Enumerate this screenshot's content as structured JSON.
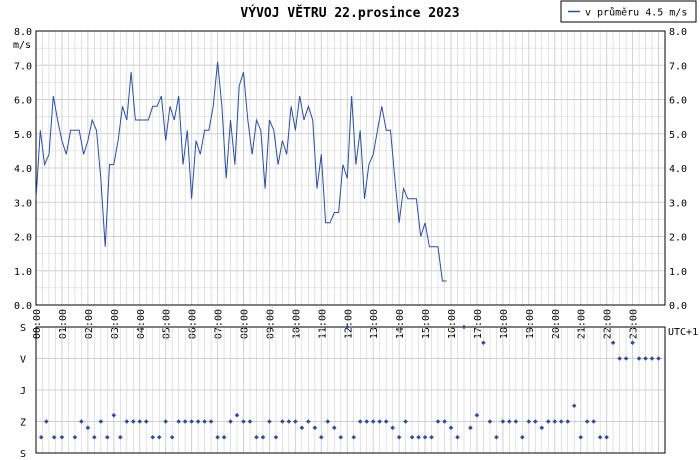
{
  "chart_data": [
    {
      "type": "line",
      "title": "VÝVOJ VĚTRU  22.prosince 2023",
      "ylabel": "m/s",
      "timezone_label": "UTC+1",
      "legend": {
        "label": "v průměru 4.5 m/s",
        "placement": "top-right"
      },
      "ylim": [
        0,
        8
      ],
      "yticks": [
        "0.0",
        "1.0",
        "2.0",
        "3.0",
        "4.0",
        "5.0",
        "6.0",
        "7.0",
        "8.0"
      ],
      "xlim_hours": [
        0,
        24.25
      ],
      "xticks": [
        "00:00",
        "01:00",
        "02:00",
        "03:00",
        "04:00",
        "05:00",
        "06:00",
        "07:00",
        "08:00",
        "09:00",
        "10:00",
        "11:00",
        "12:00",
        "13:00",
        "14:00",
        "15:00",
        "16:00",
        "17:00",
        "18:00",
        "19:00",
        "20:00",
        "21:00",
        "22:00",
        "23:00"
      ],
      "grid": true,
      "colors": {
        "line": "#2b4f9e",
        "grid": "#d0d0d0",
        "axis": "#000000"
      },
      "series": [
        {
          "interval_minutes": 10,
          "values": [
            3.1,
            5.1,
            4.1,
            4.4,
            6.1,
            5.4,
            4.8,
            4.4,
            5.1,
            5.1,
            5.1,
            4.4,
            4.8,
            5.4,
            5.1,
            3.7,
            1.7,
            4.1,
            4.1,
            4.8,
            5.8,
            5.4,
            6.8,
            5.4,
            5.4,
            5.4,
            5.4,
            5.8,
            5.8,
            6.1,
            4.8,
            5.8,
            5.4,
            6.1,
            4.1,
            5.1,
            3.1,
            4.8,
            4.4,
            5.1,
            5.1,
            5.8,
            7.1,
            5.8,
            3.7,
            5.4,
            4.1,
            6.4,
            6.8,
            5.4,
            4.4,
            5.4,
            5.1,
            3.4,
            5.4,
            5.1,
            4.1,
            4.8,
            4.4,
            5.8,
            5.1,
            6.1,
            5.4,
            5.8,
            5.4,
            3.4,
            4.4,
            2.4,
            2.4,
            2.7,
            2.7,
            4.1,
            3.7,
            6.1,
            4.1,
            5.1,
            3.1,
            4.1,
            4.4,
            5.1,
            5.8,
            5.1,
            5.1,
            3.7,
            2.4,
            3.4,
            3.1,
            3.1,
            3.1,
            2.0,
            2.4,
            1.7,
            1.7,
            1.7,
            0.7,
            0.7
          ]
        }
      ]
    },
    {
      "type": "scatter",
      "yticks": [
        "S",
        "V",
        "J",
        "Z",
        "S"
      ],
      "ylim": [
        0,
        4
      ],
      "xlim_hours": [
        0,
        24.25
      ],
      "marker_color": "#2b4f9e",
      "points": [
        [
          0.2,
          0.5
        ],
        [
          0.4,
          1.0
        ],
        [
          0.7,
          0.5
        ],
        [
          1.0,
          0.5
        ],
        [
          1.5,
          0.5
        ],
        [
          1.75,
          1.0
        ],
        [
          2.0,
          0.8
        ],
        [
          2.25,
          0.5
        ],
        [
          2.5,
          1.0
        ],
        [
          2.75,
          0.5
        ],
        [
          3.0,
          1.2
        ],
        [
          3.25,
          0.5
        ],
        [
          3.5,
          1.0
        ],
        [
          3.75,
          1.0
        ],
        [
          4.0,
          1.0
        ],
        [
          4.25,
          1.0
        ],
        [
          4.5,
          0.5
        ],
        [
          4.75,
          0.5
        ],
        [
          5.0,
          1.0
        ],
        [
          5.25,
          0.5
        ],
        [
          5.5,
          1.0
        ],
        [
          5.75,
          1.0
        ],
        [
          6.0,
          1.0
        ],
        [
          6.25,
          1.0
        ],
        [
          6.5,
          1.0
        ],
        [
          6.75,
          1.0
        ],
        [
          7.0,
          0.5
        ],
        [
          7.25,
          0.5
        ],
        [
          7.5,
          1.0
        ],
        [
          7.75,
          1.2
        ],
        [
          8.0,
          1.0
        ],
        [
          8.25,
          1.0
        ],
        [
          8.5,
          0.5
        ],
        [
          8.75,
          0.5
        ],
        [
          9.0,
          1.0
        ],
        [
          9.25,
          0.5
        ],
        [
          9.5,
          1.0
        ],
        [
          9.75,
          1.0
        ],
        [
          10.0,
          1.0
        ],
        [
          10.25,
          0.8
        ],
        [
          10.5,
          1.0
        ],
        [
          10.75,
          0.8
        ],
        [
          11.0,
          0.5
        ],
        [
          11.25,
          1.0
        ],
        [
          11.5,
          0.8
        ],
        [
          11.75,
          0.5
        ],
        [
          12.0,
          4.0
        ],
        [
          12.25,
          0.5
        ],
        [
          12.5,
          1.0
        ],
        [
          12.75,
          1.0
        ],
        [
          13.0,
          1.0
        ],
        [
          13.25,
          1.0
        ],
        [
          13.5,
          1.0
        ],
        [
          13.75,
          0.8
        ],
        [
          14.0,
          0.5
        ],
        [
          14.25,
          1.0
        ],
        [
          14.5,
          0.5
        ],
        [
          14.75,
          0.5
        ],
        [
          15.0,
          0.5
        ],
        [
          15.25,
          0.5
        ],
        [
          15.5,
          1.0
        ],
        [
          15.75,
          1.0
        ],
        [
          16.0,
          0.8
        ],
        [
          16.25,
          0.5
        ],
        [
          16.5,
          4.0
        ],
        [
          16.75,
          0.8
        ],
        [
          17.0,
          1.2
        ],
        [
          17.25,
          3.5
        ],
        [
          17.5,
          1.0
        ],
        [
          17.75,
          0.5
        ],
        [
          18.0,
          1.0
        ],
        [
          18.25,
          1.0
        ],
        [
          18.5,
          1.0
        ],
        [
          18.75,
          0.5
        ],
        [
          19.0,
          1.0
        ],
        [
          19.25,
          1.0
        ],
        [
          19.5,
          0.8
        ],
        [
          19.75,
          1.0
        ],
        [
          20.0,
          1.0
        ],
        [
          20.25,
          1.0
        ],
        [
          20.5,
          1.0
        ],
        [
          20.75,
          1.5
        ],
        [
          21.0,
          0.5
        ],
        [
          21.25,
          1.0
        ],
        [
          21.5,
          1.0
        ],
        [
          21.75,
          0.5
        ],
        [
          22.0,
          0.5
        ],
        [
          22.25,
          3.5
        ],
        [
          22.5,
          3.0
        ],
        [
          22.75,
          3.0
        ],
        [
          23.0,
          3.5
        ],
        [
          23.25,
          3.0
        ],
        [
          23.5,
          3.0
        ],
        [
          23.75,
          3.0
        ],
        [
          24.0,
          3.0
        ]
      ]
    }
  ]
}
